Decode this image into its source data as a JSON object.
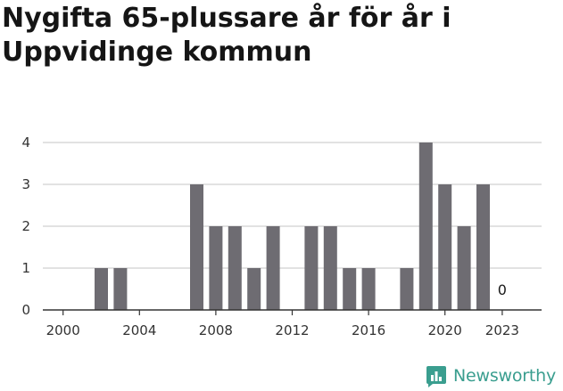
{
  "title": "Nygifta 65-plussare år för år i Uppvidinge kommun",
  "brand": {
    "name": "Newsworthy",
    "icon": "newsworthy-logo-icon",
    "color": "#3a9e8f"
  },
  "colors": {
    "bar": "#6e6c72",
    "grid": "#d9d9d9",
    "axis": "#333333"
  },
  "chart_data": {
    "type": "bar",
    "categories": [
      2000,
      2001,
      2002,
      2003,
      2004,
      2005,
      2006,
      2007,
      2008,
      2009,
      2010,
      2011,
      2012,
      2013,
      2014,
      2015,
      2016,
      2017,
      2018,
      2019,
      2020,
      2021,
      2022,
      2023
    ],
    "values": [
      0,
      0,
      1,
      1,
      0,
      0,
      0,
      3,
      2,
      2,
      1,
      2,
      0,
      2,
      2,
      1,
      1,
      0,
      1,
      4,
      3,
      2,
      3,
      0
    ],
    "x_ticks": [
      "2000",
      "2004",
      "2008",
      "2012",
      "2016",
      "2020",
      "2023"
    ],
    "y_ticks": [
      "0",
      "1",
      "2",
      "3",
      "4"
    ],
    "ylim": [
      0,
      4
    ],
    "grid": true,
    "annotations": [
      {
        "category": 2023,
        "text": "0"
      }
    ],
    "title": "Nygifta 65-plussare år för år i Uppvidinge kommun"
  }
}
